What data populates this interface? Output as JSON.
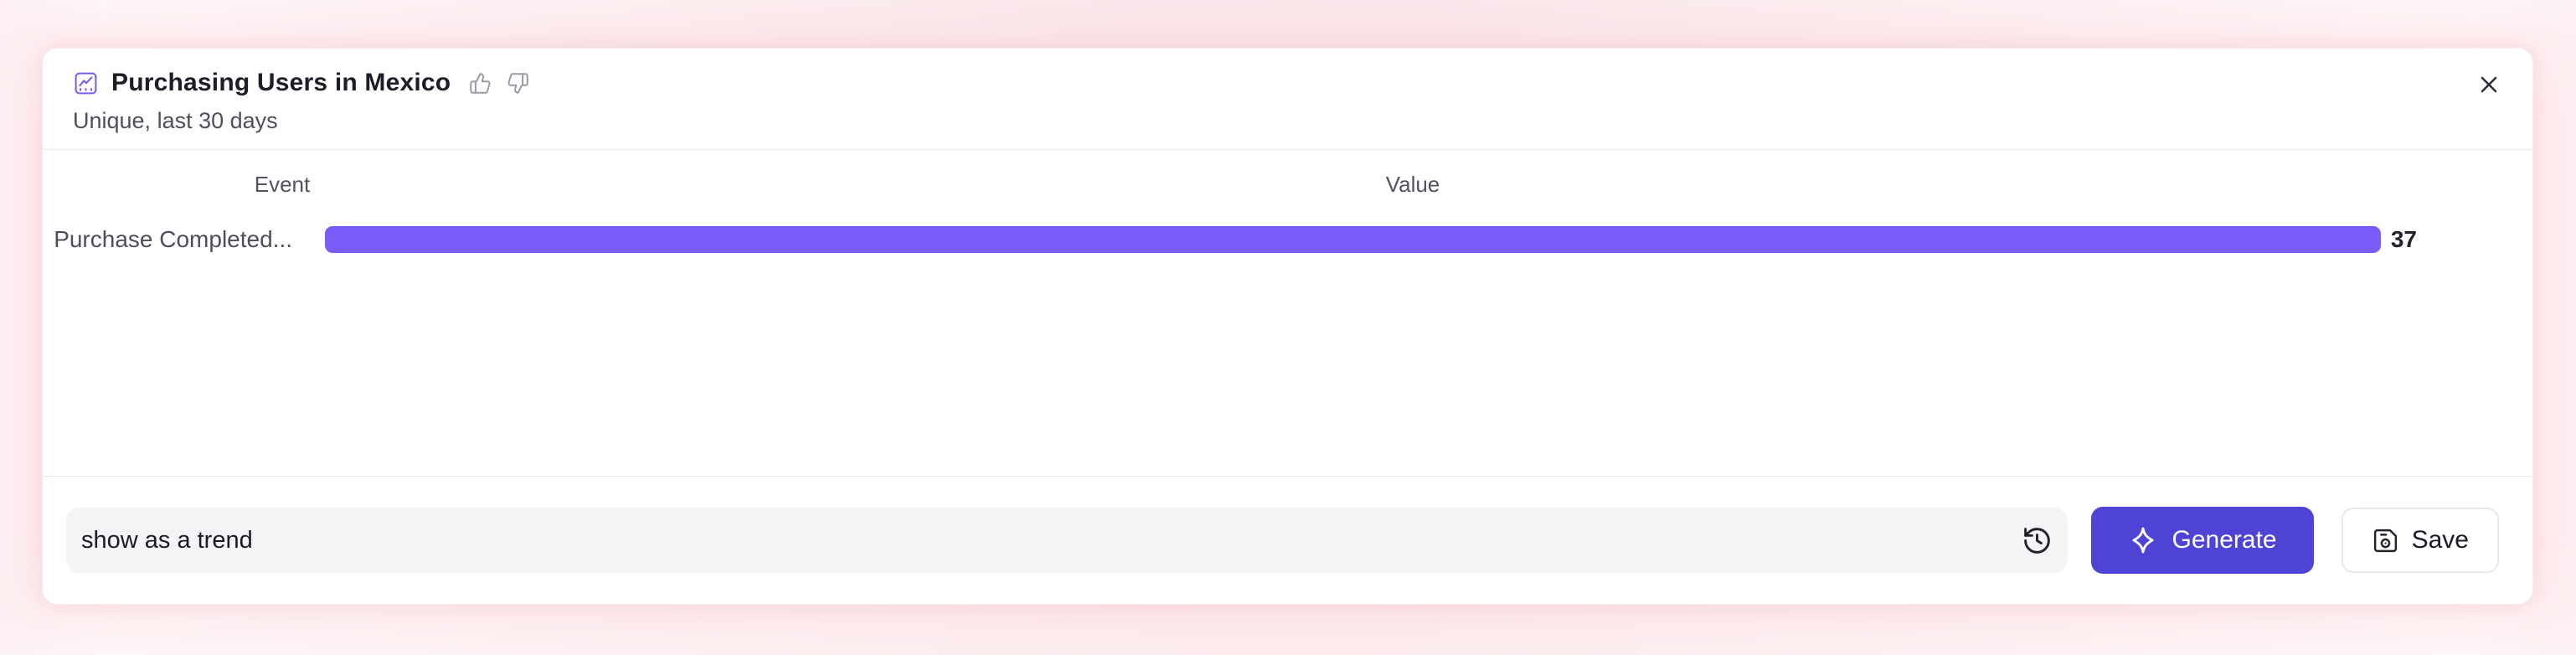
{
  "header": {
    "title": "Purchasing Users in Mexico",
    "subtitle": "Unique, last 30 days"
  },
  "table": {
    "columns": [
      "Event",
      "Value"
    ],
    "rows": [
      {
        "event": "Purchase Completed...",
        "value": "37"
      }
    ]
  },
  "chart_data": {
    "type": "bar",
    "orientation": "horizontal",
    "title": "Purchasing Users in Mexico",
    "subtitle": "Unique, last 30 days",
    "categories": [
      "Purchase Completed..."
    ],
    "values": [
      37
    ],
    "value_labels": [
      "37"
    ],
    "xlabel": "Value",
    "ylabel": "Event",
    "xlim": [
      0,
      37
    ],
    "grid": false,
    "legend": false,
    "bar_color": "#7b5cfa"
  },
  "footer": {
    "prompt": {
      "value": "show as a trend",
      "placeholder": ""
    },
    "generate_label": "Generate",
    "save_label": "Save"
  },
  "icons": {
    "title_icon": "line-chart-icon",
    "feedback_icons": [
      "thumbs-up-icon",
      "thumbs-down-icon"
    ],
    "close": "close-icon",
    "history": "history-icon",
    "generate": "sparkle-icon",
    "save": "save-icon"
  },
  "colors": {
    "bar": "#7b5cfa",
    "icon_accent": "#7a5cf5",
    "generate_button": "#4e43d4",
    "input_background": "#f4f4f6"
  }
}
